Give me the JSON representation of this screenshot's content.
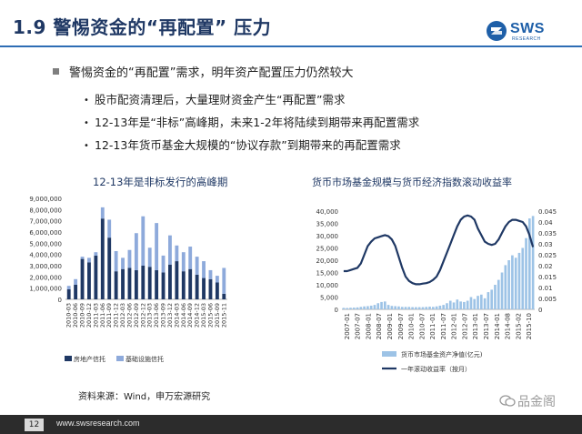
{
  "header": {
    "title": "1.9 警惕资金的“再配置” 压力",
    "logo_text": "SWS",
    "logo_sub": "RESEARCH",
    "accent_color": "#2e6db4"
  },
  "content": {
    "main_bullet": "警惕资金的“再配置”需求，明年资产配置压力仍然较大",
    "sub_bullets": [
      "股市配资清理后，大量理财资金产生“再配置”需求",
      "12-13年是“非标”高峰期，未来1-2年将陆续到期带来再配置需求",
      "12-13年货币基金大规模的“协议存款”到期带来的再配置需求"
    ]
  },
  "chart_data": [
    {
      "type": "bar",
      "title": "12-13年是非标发行的高峰期",
      "stacked": true,
      "categories": [
        "2010-03",
        "2010-06",
        "2010-09",
        "2010-12",
        "2011-03",
        "2011-06",
        "2011-09",
        "2011-12",
        "2012-03",
        "2012-06",
        "2012-09",
        "2012-12",
        "2013-03",
        "2013-06",
        "2013-09",
        "2013-12",
        "2014-03",
        "2014-06",
        "2014-09",
        "2014-12",
        "2015-03",
        "2015-06",
        "2015-09",
        "2015-11"
      ],
      "x_tick_labels": [
        "2010-03",
        "2010-06",
        "2010-09",
        "2010-12",
        "2011-03",
        "2011-06",
        "2011-09",
        "2011-12",
        "2012-03",
        "2012-06",
        "2012-09",
        "2012-12",
        "2013-03",
        "2013-06",
        "2013-09",
        "2013-12",
        "2014-03",
        "2014-06",
        "2014-09",
        "2014-12",
        "2015-03",
        "2015-06",
        "2015-09",
        "2015-11"
      ],
      "series": [
        {
          "name": "房地产信托",
          "color": "#1f3864",
          "values": [
            900000,
            1300000,
            3600000,
            3300000,
            3900000,
            7200000,
            5500000,
            2500000,
            2700000,
            2800000,
            2600000,
            3000000,
            2900000,
            2600000,
            2400000,
            3100000,
            3400000,
            2500000,
            2700000,
            2200000,
            1900000,
            1800000,
            1500000,
            500000
          ]
        },
        {
          "name": "基础设施信托",
          "color": "#8eaadb",
          "values": [
            300000,
            500000,
            200000,
            400000,
            300000,
            1000000,
            1600000,
            1800000,
            1000000,
            1600000,
            3300000,
            4400000,
            1700000,
            4200000,
            1500000,
            2600000,
            1400000,
            1700000,
            2000000,
            1600000,
            1500000,
            800000,
            600000,
            2300000
          ]
        }
      ],
      "ylim": [
        0,
        9000000
      ],
      "y_ticks": [
        "0",
        "1,000,000",
        "2,000,000",
        "3,000,000",
        "4,000,000",
        "5,000,000",
        "6,000,000",
        "7,000,000",
        "8,000,000",
        "9,000,000"
      ],
      "legend": [
        "房地产信托",
        "基础设施信托"
      ],
      "xlabel": "",
      "ylabel": ""
    },
    {
      "type": "bar+line",
      "title": "货币市场基金规模与货币经济指数滚动收益率",
      "x_tick_labels": [
        "2007-01",
        "2007-07",
        "2008-01",
        "2008-07",
        "2009-01",
        "2009-07",
        "2010-01",
        "2010-07",
        "2011-01",
        "2011-07",
        "2012-01",
        "2012-07",
        "2013-01",
        "2013-07",
        "2014-01",
        "2014-08",
        "2015-02",
        "2015-10"
      ],
      "bars": {
        "name": "货币市场基金资产净值(亿元)",
        "color": "#9dc3e6",
        "axis": "left",
        "ylim": [
          0,
          40000
        ],
        "y_ticks": [
          "0",
          "5,000",
          "10,000",
          "15,000",
          "20,000",
          "25,000",
          "30,000",
          "35,000",
          "40,000"
        ],
        "values": [
          600,
          550,
          650,
          700,
          800,
          1000,
          1200,
          1300,
          1500,
          1800,
          2500,
          3000,
          3200,
          1800,
          1400,
          1300,
          1200,
          1000,
          1000,
          1000,
          900,
          900,
          900,
          900,
          1000,
          1100,
          1000,
          1200,
          1500,
          1800,
          2500,
          3500,
          2800,
          4000,
          3200,
          3000,
          3500,
          5000,
          4200,
          5500,
          6000,
          4500,
          7000,
          8000,
          10000,
          12000,
          15000,
          18000,
          20000,
          22000,
          21000,
          23000,
          25000,
          29000,
          37000,
          38000
        ]
      },
      "line": {
        "name": "一年滚动收益率（按月）",
        "color": "#1f3864",
        "axis": "right",
        "ylim": [
          0,
          0.045
        ],
        "y_ticks": [
          "0",
          "0.005",
          "0.01",
          "0.015",
          "0.02",
          "0.025",
          "0.03",
          "0.035",
          "0.04",
          "0.045"
        ],
        "values": [
          0.0175,
          0.0175,
          0.018,
          0.0185,
          0.019,
          0.021,
          0.025,
          0.029,
          0.031,
          0.0325,
          0.033,
          0.0335,
          0.034,
          0.0335,
          0.032,
          0.029,
          0.024,
          0.019,
          0.015,
          0.013,
          0.012,
          0.0115,
          0.0115,
          0.0118,
          0.012,
          0.0125,
          0.0135,
          0.015,
          0.018,
          0.022,
          0.026,
          0.03,
          0.034,
          0.038,
          0.041,
          0.0425,
          0.043,
          0.0425,
          0.041,
          0.037,
          0.034,
          0.031,
          0.03,
          0.0295,
          0.03,
          0.032,
          0.035,
          0.038,
          0.04,
          0.041,
          0.041,
          0.0405,
          0.04,
          0.038,
          0.034,
          0.0285
        ]
      },
      "legend": [
        "货币市场基金资产净值(亿元)",
        "一年滚动收益率（按月）"
      ]
    }
  ],
  "source": "资料来源：Wind，申万宏源研究",
  "footer": {
    "page": "12",
    "url": "www.swsresearch.com"
  },
  "watermark": "品金阁"
}
